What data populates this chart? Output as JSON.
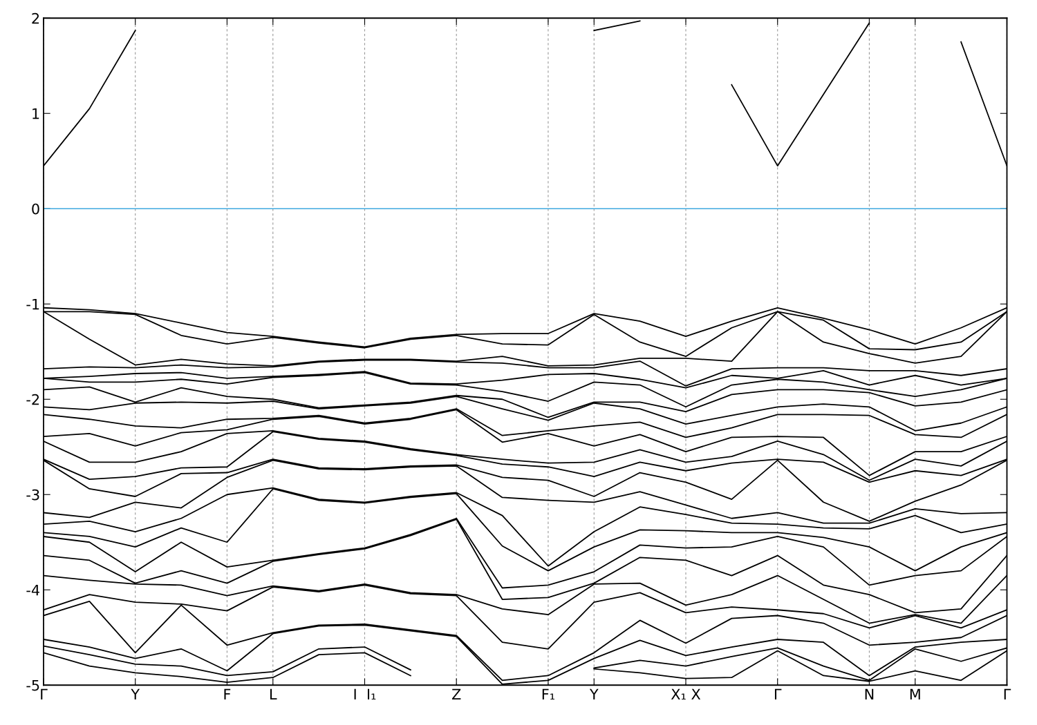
{
  "chart_data": {
    "type": "line",
    "categories": [
      "Γ",
      null,
      "Y",
      null,
      "F",
      "L",
      null,
      "I  I₁",
      null,
      "Z",
      null,
      "F₁",
      "Y",
      null,
      "X₁ X",
      null,
      "Γ",
      null,
      "N",
      "M",
      null,
      "Γ"
    ],
    "ylim": [
      -5,
      2
    ],
    "yticks": [
      -5,
      -4,
      -3,
      -2,
      -1,
      0,
      1,
      2
    ],
    "grid": "x",
    "line_style": "solid",
    "ref_lines": [
      {
        "axis": "y",
        "value": 0,
        "color": "#3fa9e0"
      }
    ],
    "series": [
      {
        "color": "#000000",
        "values": [
          0.45,
          1.05,
          1.87,
          null,
          null,
          null,
          null,
          null,
          null,
          null,
          null,
          null,
          1.87,
          1.97,
          null,
          1.3,
          0.45,
          1.2,
          1.95,
          null,
          1.75,
          0.45
        ]
      },
      {
        "color": "#000000",
        "values": [
          -1.04,
          -1.06,
          -1.1,
          -1.2,
          -1.3,
          -1.34,
          -1.4,
          -1.45,
          -1.36,
          -1.32,
          -1.31,
          -1.31,
          -1.1,
          -1.18,
          -1.34,
          -1.18,
          -1.04,
          -1.15,
          -1.27,
          -1.42,
          -1.25,
          -1.04
        ]
      },
      {
        "color": "#000000",
        "values": [
          -1.08,
          -1.08,
          -1.11,
          -1.33,
          -1.42,
          -1.35,
          -1.41,
          -1.46,
          -1.37,
          -1.33,
          -1.42,
          -1.43,
          -1.11,
          -1.4,
          -1.55,
          -1.25,
          -1.08,
          -1.17,
          -1.47,
          -1.48,
          -1.4,
          -1.08
        ]
      },
      {
        "color": "#000000",
        "values": [
          -1.08,
          -1.37,
          -1.64,
          -1.58,
          -1.63,
          -1.65,
          -1.6,
          -1.58,
          -1.58,
          -1.6,
          -1.55,
          -1.65,
          -1.64,
          -1.57,
          -1.57,
          -1.6,
          -1.08,
          -1.4,
          -1.52,
          -1.62,
          -1.55,
          -1.08
        ]
      },
      {
        "color": "#000000",
        "values": [
          -1.68,
          -1.66,
          -1.67,
          -1.64,
          -1.67,
          -1.66,
          -1.61,
          -1.59,
          -1.59,
          -1.61,
          -1.62,
          -1.67,
          -1.67,
          -1.6,
          -1.86,
          -1.68,
          -1.67,
          -1.67,
          -1.7,
          -1.7,
          -1.75,
          -1.68
        ]
      },
      {
        "color": "#000000",
        "values": [
          -1.78,
          -1.76,
          -1.73,
          -1.72,
          -1.78,
          -1.76,
          -1.74,
          -1.71,
          -1.83,
          -1.84,
          -1.8,
          -1.74,
          -1.73,
          -1.79,
          -1.88,
          -1.75,
          -1.78,
          -1.7,
          -1.85,
          -1.75,
          -1.85,
          -1.78
        ]
      },
      {
        "color": "#000000",
        "values": [
          -1.78,
          -1.82,
          -1.82,
          -1.79,
          -1.84,
          -1.77,
          -1.75,
          -1.72,
          -1.84,
          -1.85,
          -1.92,
          -2.02,
          -1.82,
          -1.85,
          -2.08,
          -1.85,
          -1.79,
          -1.82,
          -1.9,
          -1.97,
          -1.9,
          -1.78
        ]
      },
      {
        "color": "#000000",
        "values": [
          -1.9,
          -1.87,
          -2.03,
          -1.88,
          -1.97,
          -2.0,
          -2.09,
          -2.06,
          -2.03,
          -1.96,
          -2.0,
          -2.19,
          -2.03,
          -2.03,
          -2.13,
          -1.95,
          -1.9,
          -1.9,
          -1.93,
          -2.07,
          -2.03,
          -1.9
        ]
      },
      {
        "color": "#000000",
        "values": [
          -2.08,
          -2.11,
          -2.04,
          -2.03,
          -2.04,
          -2.02,
          -2.1,
          -2.07,
          -2.04,
          -1.97,
          -2.1,
          -2.22,
          -2.04,
          -2.1,
          -2.26,
          -2.17,
          -2.08,
          -2.05,
          -2.08,
          -2.33,
          -2.25,
          -2.08
        ]
      },
      {
        "color": "#000000",
        "values": [
          -2.16,
          -2.21,
          -2.28,
          -2.3,
          -2.21,
          -2.2,
          -2.17,
          -2.25,
          -2.2,
          -2.1,
          -2.38,
          -2.33,
          -2.28,
          -2.24,
          -2.4,
          -2.3,
          -2.16,
          -2.16,
          -2.17,
          -2.37,
          -2.4,
          -2.16
        ]
      },
      {
        "color": "#000000",
        "values": [
          -2.39,
          -2.36,
          -2.49,
          -2.35,
          -2.32,
          -2.21,
          -2.18,
          -2.26,
          -2.21,
          -2.11,
          -2.45,
          -2.36,
          -2.49,
          -2.37,
          -2.55,
          -2.4,
          -2.39,
          -2.4,
          -2.8,
          -2.55,
          -2.55,
          -2.39
        ]
      },
      {
        "color": "#000000",
        "values": [
          -2.44,
          -2.66,
          -2.66,
          -2.55,
          -2.36,
          -2.33,
          -2.41,
          -2.44,
          -2.52,
          -2.58,
          -2.63,
          -2.67,
          -2.66,
          -2.53,
          -2.66,
          -2.6,
          -2.44,
          -2.58,
          -2.85,
          -2.63,
          -2.7,
          -2.44
        ]
      },
      {
        "color": "#000000",
        "values": [
          -2.63,
          -2.84,
          -2.81,
          -2.72,
          -2.71,
          -2.34,
          -2.42,
          -2.45,
          -2.53,
          -2.59,
          -2.68,
          -2.71,
          -2.81,
          -2.66,
          -2.75,
          -2.67,
          -2.63,
          -2.66,
          -2.87,
          -2.75,
          -2.8,
          -2.63
        ]
      },
      {
        "color": "#000000",
        "values": [
          -2.64,
          -2.94,
          -3.02,
          -2.78,
          -2.77,
          -2.63,
          -2.72,
          -2.73,
          -2.7,
          -2.69,
          -2.82,
          -2.85,
          -3.02,
          -2.77,
          -2.87,
          -3.05,
          -2.64,
          -3.08,
          -3.28,
          -3.07,
          -2.9,
          -2.64
        ]
      },
      {
        "color": "#000000",
        "values": [
          -3.19,
          -3.24,
          -3.08,
          -3.14,
          -2.82,
          -2.64,
          -2.73,
          -2.74,
          -2.71,
          -2.7,
          -3.03,
          -3.06,
          -3.08,
          -2.97,
          -3.11,
          -3.25,
          -3.19,
          -3.3,
          -3.3,
          -3.15,
          -3.2,
          -3.19
        ]
      },
      {
        "color": "#000000",
        "values": [
          -3.31,
          -3.28,
          -3.39,
          -3.25,
          -3.0,
          -2.93,
          -3.05,
          -3.08,
          -3.02,
          -2.98,
          -3.22,
          -3.75,
          -3.39,
          -3.13,
          -3.21,
          -3.3,
          -3.31,
          -3.35,
          -3.36,
          -3.22,
          -3.4,
          -3.31
        ]
      },
      {
        "color": "#000000",
        "values": [
          -3.4,
          -3.44,
          -3.55,
          -3.35,
          -3.5,
          -2.94,
          -3.06,
          -3.09,
          -3.03,
          -2.99,
          -3.54,
          -3.8,
          -3.55,
          -3.37,
          -3.38,
          -3.4,
          -3.4,
          -3.45,
          -3.55,
          -3.8,
          -3.55,
          -3.4
        ]
      },
      {
        "color": "#000000",
        "values": [
          -3.44,
          -3.5,
          -3.81,
          -3.5,
          -3.76,
          -3.69,
          -3.62,
          -3.56,
          -3.42,
          -3.25,
          -3.98,
          -3.95,
          -3.81,
          -3.53,
          -3.56,
          -3.55,
          -3.44,
          -3.55,
          -3.95,
          -3.85,
          -3.8,
          -3.44
        ]
      },
      {
        "color": "#000000",
        "values": [
          -3.64,
          -3.69,
          -3.93,
          -3.8,
          -3.93,
          -3.7,
          -3.63,
          -3.57,
          -3.43,
          -3.26,
          -4.1,
          -4.08,
          -3.93,
          -3.66,
          -3.69,
          -3.85,
          -3.64,
          -3.95,
          -4.05,
          -4.24,
          -4.2,
          -3.64
        ]
      },
      {
        "color": "#000000",
        "values": [
          -3.85,
          -3.9,
          -3.94,
          -3.95,
          -4.06,
          -3.96,
          -4.01,
          -3.94,
          -4.03,
          -4.05,
          -4.2,
          -4.26,
          -3.94,
          -3.93,
          -4.16,
          -4.05,
          -3.85,
          -4.1,
          -4.35,
          -4.26,
          -4.35,
          -3.85
        ]
      },
      {
        "color": "#000000",
        "values": [
          -4.21,
          -4.05,
          -4.13,
          -4.15,
          -4.22,
          -3.97,
          -4.02,
          -3.95,
          -4.04,
          -4.06,
          -4.55,
          -4.62,
          -4.13,
          -4.03,
          -4.24,
          -4.18,
          -4.21,
          -4.25,
          -4.4,
          -4.27,
          -4.4,
          -4.21
        ]
      },
      {
        "color": "#000000",
        "values": [
          -4.27,
          -4.12,
          -4.66,
          -4.16,
          -4.58,
          -4.45,
          -4.37,
          -4.36,
          -4.42,
          -4.48,
          -4.95,
          -4.9,
          -4.66,
          -4.32,
          -4.56,
          -4.3,
          -4.27,
          -4.35,
          -4.58,
          -4.55,
          -4.5,
          -4.27
        ]
      },
      {
        "color": "#000000",
        "values": [
          -4.52,
          -4.6,
          -4.72,
          -4.62,
          -4.85,
          -4.46,
          -4.38,
          -4.37,
          -4.43,
          -4.49,
          -4.99,
          -4.95,
          -4.72,
          -4.53,
          -4.69,
          -4.6,
          -4.52,
          -4.55,
          -4.9,
          -4.6,
          -4.55,
          -4.52
        ]
      },
      {
        "color": "#000000",
        "values": [
          -4.59,
          -4.68,
          -4.78,
          -4.8,
          -4.9,
          -4.86,
          -4.62,
          -4.6,
          -4.84,
          null,
          null,
          null,
          -4.82,
          -4.74,
          -4.8,
          -4.7,
          -4.61,
          -4.8,
          -4.95,
          -4.62,
          -4.75,
          -4.61
        ]
      },
      {
        "color": "#000000",
        "values": [
          -4.66,
          -4.8,
          -4.87,
          -4.91,
          -4.97,
          -4.92,
          -4.68,
          -4.66,
          -4.9,
          null,
          null,
          null,
          -4.83,
          -4.87,
          -4.93,
          -4.92,
          -4.64,
          -4.9,
          -4.96,
          -4.85,
          -4.95,
          -4.64
        ]
      }
    ]
  }
}
